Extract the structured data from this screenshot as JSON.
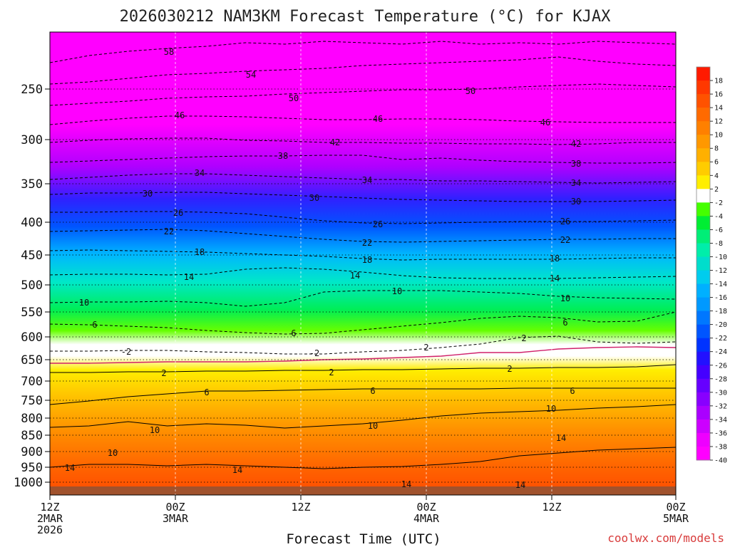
{
  "chart_data": {
    "type": "heatmap",
    "title": "2026030212 NAM3KM Forecast Temperature (°C) for KJAX",
    "xlabel": "Forecast Time (UTC)",
    "ylabel": "",
    "credit": "coolwx.com/models",
    "y_ticks": [
      "250",
      "300",
      "350",
      "400",
      "450",
      "500",
      "550",
      "600",
      "650",
      "700",
      "750",
      "800",
      "850",
      "900",
      "950",
      "1000"
    ],
    "x_ticks": [
      {
        "top": "12Z",
        "mid": "2MAR",
        "bot": "2026"
      },
      {
        "top": "00Z",
        "mid": "3MAR",
        "bot": ""
      },
      {
        "top": "12Z",
        "mid": "",
        "bot": ""
      },
      {
        "top": "00Z",
        "mid": "4MAR",
        "bot": ""
      },
      {
        "top": "12Z",
        "mid": "",
        "bot": ""
      },
      {
        "top": "00Z",
        "mid": "5MAR",
        "bot": ""
      }
    ],
    "colorbar_labels": [
      "18",
      "16",
      "14",
      "12",
      "10",
      "8",
      "6",
      "4",
      "2",
      "-2",
      "-4",
      "-6",
      "-8",
      "-10",
      "-12",
      "-14",
      "-16",
      "-18",
      "-20",
      "-22",
      "-24",
      "-26",
      "-28",
      "-30",
      "-32",
      "-34",
      "-36",
      "-38",
      "-40"
    ],
    "colorbar_colors": [
      "#ff1a00",
      "#ff3800",
      "#ff5200",
      "#ff6a00",
      "#ff8000",
      "#ff9800",
      "#ffb000",
      "#ffcc00",
      "#ffee00",
      "#ffffff",
      "#44ff00",
      "#00ee33",
      "#00ee77",
      "#00eeaa",
      "#00ddcc",
      "#00ccee",
      "#00b0ff",
      "#0099ff",
      "#0077ff",
      "#0055ff",
      "#0033ff",
      "#2211ff",
      "#4400ff",
      "#6600ff",
      "#8800ff",
      "#aa00ff",
      "#cc00ff",
      "#ee00ff",
      "#ff00ff"
    ],
    "series": [
      {
        "name": "58",
        "values": [
          88,
          78,
          72,
          68,
          65,
          60,
          62,
          58,
          60,
          62,
          58,
          62,
          60,
          62,
          58,
          60,
          62
        ]
      },
      {
        "name": "54",
        "values": [
          118,
          115,
          110,
          105,
          103,
          100,
          98,
          96,
          92,
          90,
          88,
          86,
          84,
          80,
          86,
          90,
          92
        ]
      },
      {
        "name": "50",
        "values": [
          148,
          145,
          142,
          138,
          136,
          135,
          132,
          130,
          128,
          126,
          126,
          125,
          122,
          120,
          118,
          120,
          122
        ]
      },
      {
        "name": "46",
        "values": [
          175,
          170,
          166,
          163,
          163,
          164,
          166,
          168,
          168,
          167,
          167,
          168,
          170,
          171,
          172,
          172,
          172
        ]
      },
      {
        "name": "42",
        "values": [
          200,
          197,
          195,
          194,
          194,
          197,
          198,
          200,
          200,
          201,
          201,
          202,
          202,
          203,
          202,
          200,
          200
        ]
      },
      {
        "name": "38",
        "values": [
          228,
          226,
          224,
          222,
          220,
          219,
          219,
          218,
          218,
          224,
          222,
          225,
          227,
          228,
          229,
          229,
          228
        ]
      },
      {
        "name": "34",
        "values": [
          252,
          249,
          246,
          244,
          244,
          246,
          248,
          250,
          252,
          252,
          254,
          254,
          255,
          256,
          257,
          256,
          255
        ]
      },
      {
        "name": "30",
        "values": [
          273,
          271,
          271,
          270,
          270,
          272,
          274,
          276,
          278,
          280,
          281,
          282,
          283,
          283,
          283,
          282,
          281
        ]
      },
      {
        "name": "26",
        "values": [
          298,
          298,
          297,
          297,
          298,
          300,
          305,
          310,
          313,
          314,
          313,
          312,
          311,
          311,
          311,
          310,
          309
        ]
      },
      {
        "name": "22",
        "values": [
          325,
          324,
          323,
          322,
          324,
          328,
          332,
          336,
          339,
          340,
          339,
          338,
          337,
          336,
          336,
          335,
          335
        ]
      },
      {
        "name": "18",
        "values": [
          352,
          351,
          352,
          353,
          354,
          356,
          358,
          360,
          363,
          365,
          364,
          364,
          364,
          364,
          363,
          362,
          362
        ]
      },
      {
        "name": "14",
        "values": [
          386,
          385,
          385,
          386,
          385,
          378,
          376,
          378,
          382,
          387,
          390,
          391,
          391,
          391,
          390,
          389,
          388
        ]
      },
      {
        "name": "10",
        "values": [
          425,
          424,
          424,
          423,
          425,
          430,
          425,
          410,
          408,
          408,
          408,
          410,
          412,
          416,
          418,
          419,
          420
        ]
      },
      {
        "name": "6",
        "values": [
          455,
          456,
          458,
          460,
          464,
          467,
          469,
          468,
          463,
          458,
          453,
          447,
          444,
          446,
          452,
          451,
          438
        ]
      },
      {
        "name": "2",
        "values": [
          493,
          493,
          492,
          492,
          494,
          495,
          497,
          497,
          494,
          492,
          488,
          483,
          474,
          472,
          480,
          482,
          480
        ]
      },
      {
        "name": "-2",
        "values": [
          510,
          510,
          509,
          508,
          508,
          508,
          507,
          505,
          504,
          502,
          500,
          495,
          495,
          490,
          488,
          487,
          488
        ]
      },
      {
        "name": "2b",
        "values": [
          523,
          523,
          522,
          522,
          521,
          521,
          520,
          520,
          519,
          519,
          518,
          517,
          517,
          516,
          516,
          515,
          512
        ]
      },
      {
        "name": "6b",
        "values": [
          568,
          563,
          557,
          553,
          549,
          549,
          548,
          547,
          546,
          546,
          546,
          546,
          545,
          545,
          545,
          545,
          545
        ]
      },
      {
        "name": "10b",
        "values": [
          600,
          598,
          592,
          598,
          595,
          597,
          601,
          598,
          595,
          590,
          584,
          580,
          578,
          576,
          573,
          571,
          568
        ]
      },
      {
        "name": "14b",
        "values": [
          656,
          652,
          652,
          654,
          652,
          654,
          656,
          658,
          656,
          655,
          652,
          648,
          640,
          636,
          632,
          630,
          628
        ]
      }
    ],
    "contour_labels": [
      "58",
      "54",
      "50",
      "46",
      "46",
      "46",
      "50",
      "42",
      "42",
      "38",
      "38",
      "34",
      "34",
      "34",
      "30",
      "30",
      "30",
      "26",
      "26",
      "26",
      "22",
      "22",
      "22",
      "18",
      "18",
      "18",
      "14",
      "14",
      "14",
      "10",
      "10",
      "10",
      "6",
      "6",
      "6",
      "-2",
      "-2",
      "2",
      "2",
      "2",
      "2",
      "2",
      "6",
      "6",
      "6",
      "10",
      "10",
      "10",
      "10",
      "14",
      "14",
      "14",
      "14",
      "14"
    ]
  }
}
